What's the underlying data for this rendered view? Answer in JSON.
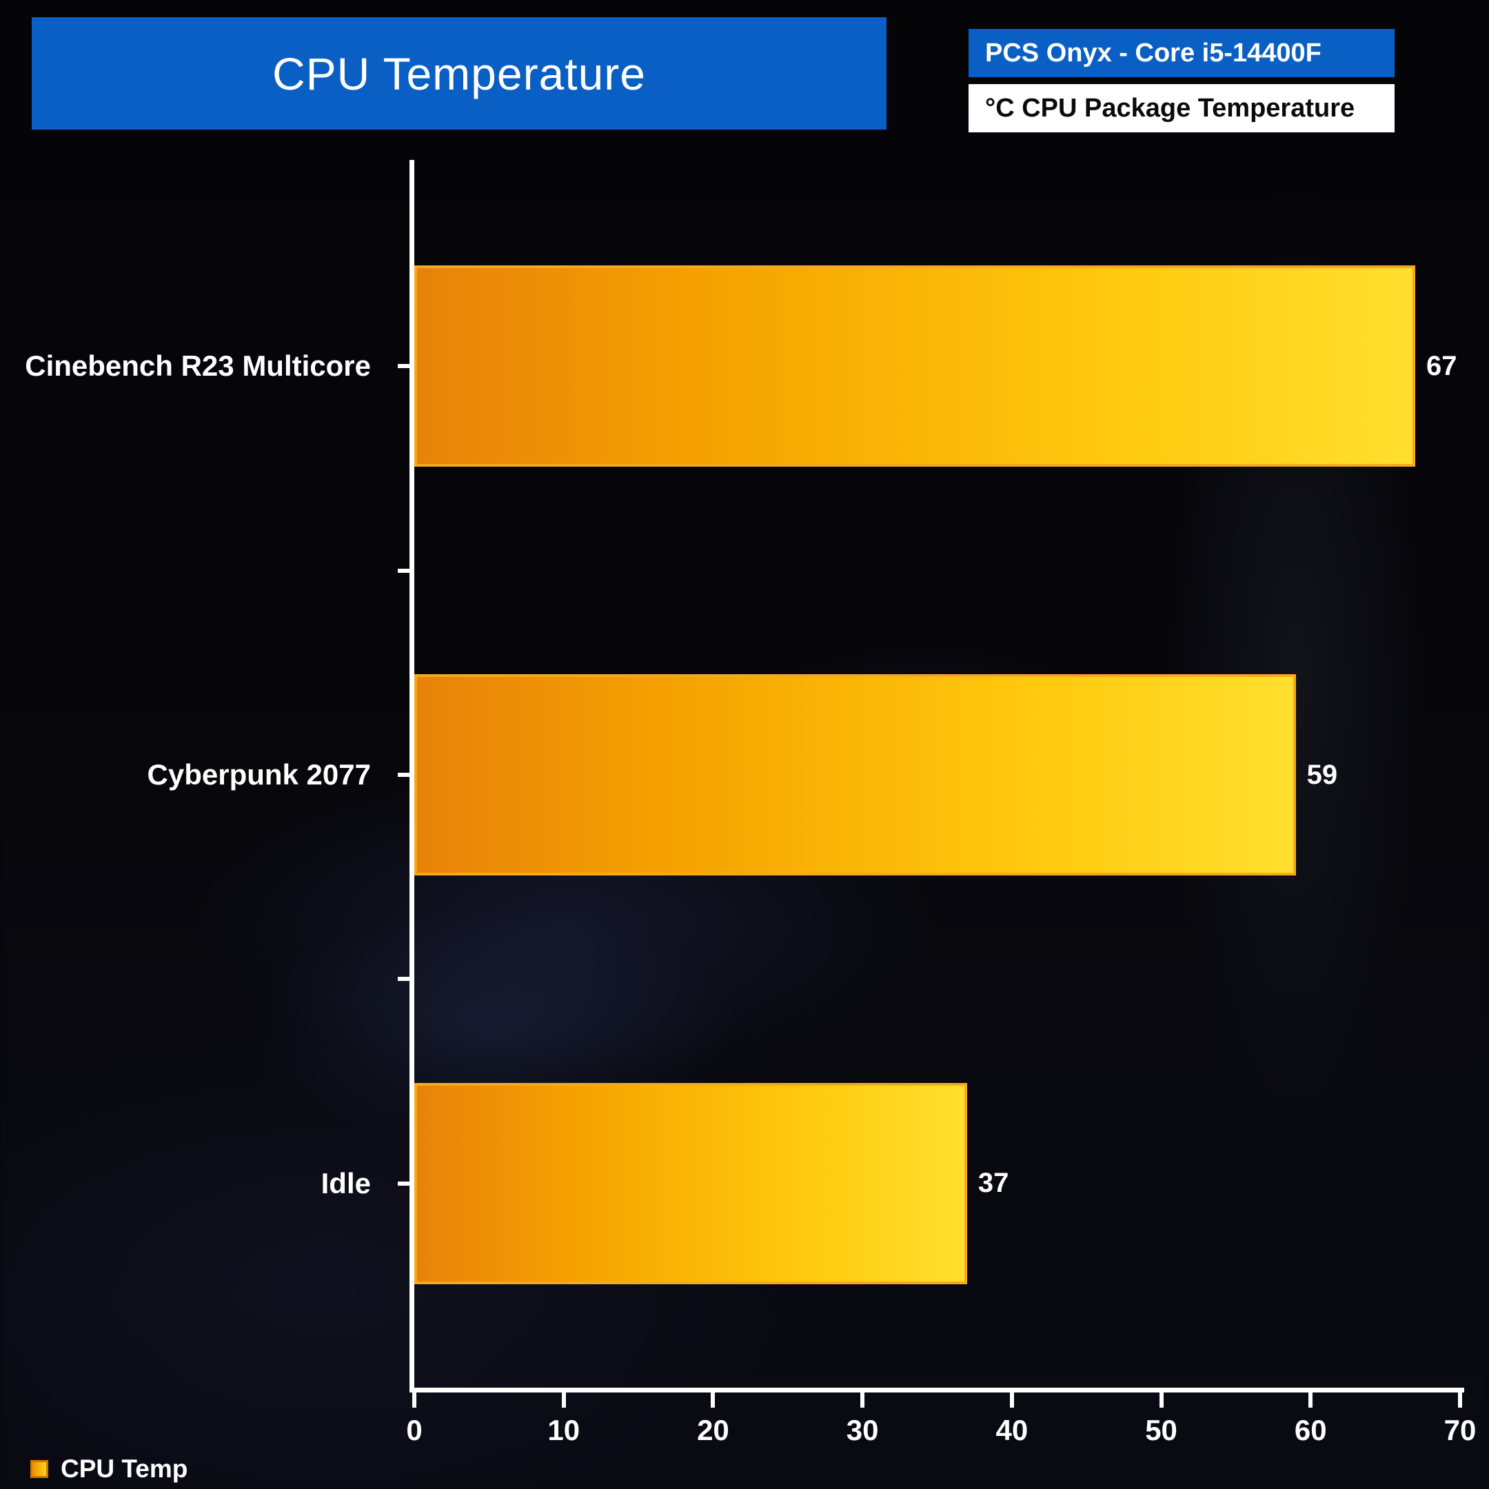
{
  "title": "CPU Temperature",
  "header": {
    "system_label": "PCS Onyx - Core i5-14400F",
    "metric_label": "°C CPU Package Temperature"
  },
  "legend": {
    "label": "CPU Temp"
  },
  "colors": {
    "accent_blue": "#0a5fc4",
    "bar_gradient_start": "#e8820a",
    "bar_gradient_end": "#ffdf2e",
    "bar_border": "#f7a823",
    "text": "#ffffff"
  },
  "chart_data": {
    "type": "bar",
    "orientation": "horizontal",
    "title": "CPU Temperature",
    "categories": [
      "Cinebench R23 Multicore",
      "Cyberpunk 2077",
      "Idle"
    ],
    "values": [
      67,
      59,
      37
    ],
    "series_name": "CPU Temp",
    "unit": "°C",
    "xlabel": "",
    "ylabel": "",
    "xlim": [
      0,
      70
    ],
    "x_ticks": [
      0,
      10,
      20,
      30,
      40,
      50,
      60,
      70
    ],
    "grid": false,
    "legend_position": "bottom-left",
    "value_labels_shown": true
  }
}
